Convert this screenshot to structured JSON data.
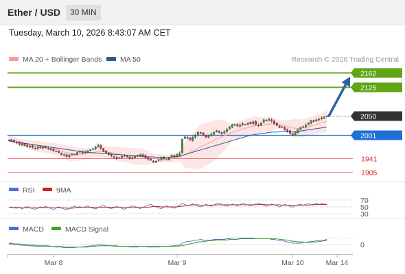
{
  "header": {
    "pair": "Ether / USD",
    "interval": "30 MIN"
  },
  "datetime": "Tuesday, March 10, 2026 8:43:07 AM CET",
  "colors": {
    "up": "#3a9a2e",
    "down": "#d4333a",
    "ma20_band": "#f4a0a0",
    "ma50": "#2c5a9a",
    "resistance": "#5fa516",
    "support": "#1f6fd6",
    "support_minor": "#f07c7c",
    "last": "#333333",
    "arrow": "#2e5f9f",
    "rsi": "#4f6fd0",
    "rsi_ma": "#cc2222",
    "macd": "#4f6fd0",
    "macd_signal": "#4aa02c"
  },
  "chart_data": [
    {
      "type": "candlestick",
      "legend": [
        "MA 20 + Bollinger Bands",
        "MA 50"
      ],
      "copyright": "Research © 2026 Trading Central",
      "x_ticks": [
        "Mar 8",
        "Mar 9",
        "Mar 10",
        "Mar 14"
      ],
      "ylim": [
        1880,
        2185
      ],
      "levels": [
        {
          "value": 2162,
          "label": "2162",
          "kind": "resistance"
        },
        {
          "value": 2125,
          "label": "2125",
          "kind": "resistance"
        },
        {
          "value": 2050,
          "label": "2050",
          "kind": "last"
        },
        {
          "value": 2001,
          "label": "2001",
          "kind": "support"
        },
        {
          "value": 1941,
          "label": "1941",
          "kind": "support_minor"
        },
        {
          "value": 1905,
          "label": "1905",
          "kind": "support_minor"
        }
      ],
      "close": [
        1988,
        1985,
        1983,
        1980,
        1976,
        1978,
        1973,
        1970,
        1972,
        1968,
        1966,
        1969,
        1967,
        1970,
        1968,
        1965,
        1962,
        1960,
        1958,
        1955,
        1950,
        1948,
        1945,
        1948,
        1952,
        1950,
        1955,
        1958,
        1954,
        1957,
        1960,
        1962,
        1965,
        1970,
        1975,
        1966,
        1958,
        1955,
        1950,
        1946,
        1943,
        1940,
        1942,
        1945,
        1948,
        1944,
        1940,
        1942,
        1945,
        1948,
        1950,
        1946,
        1942,
        1938,
        1935,
        1930,
        1933,
        1937,
        1941,
        1939,
        1936,
        1942,
        1948,
        1945,
        1950,
        1954,
        1990,
        1996,
        1992,
        1988,
        1995,
        2000,
        2008,
        2005,
        2000,
        1995,
        1998,
        2003,
        2008,
        2012,
        2007,
        2004,
        2010,
        2015,
        2022,
        2028,
        2026,
        2024,
        2027,
        2030,
        2028,
        2032,
        2030,
        2035,
        2028,
        2025,
        2032,
        2040,
        2038,
        2042,
        2036,
        2030,
        2025,
        2020,
        2022,
        2014,
        2010,
        2005,
        2000,
        2008,
        2015,
        2020,
        2022,
        2026,
        2032,
        2038,
        2035,
        2040,
        2042,
        2045,
        2048,
        2050
      ],
      "ma20": [
        1990,
        1989,
        1987,
        1985,
        1983,
        1981,
        1979,
        1977,
        1975,
        1973,
        1972,
        1971,
        1970,
        1969,
        1968,
        1967,
        1966,
        1965,
        1963,
        1961,
        1959,
        1957,
        1955,
        1953,
        1952,
        1951,
        1951,
        1951,
        1951,
        1952,
        1953,
        1954,
        1955,
        1956,
        1958,
        1958,
        1958,
        1957,
        1956,
        1955,
        1954,
        1952,
        1951,
        1950,
        1949,
        1948,
        1947,
        1946,
        1945,
        1945,
        1945,
        1944,
        1943,
        1942,
        1941,
        1940,
        1940,
        1940,
        1940,
        1940,
        1940,
        1940,
        1941,
        1942,
        1943,
        1944,
        1947,
        1950,
        1953,
        1956,
        1959,
        1962,
        1966,
        1970,
        1973,
        1976,
        1979,
        1982,
        1986,
        1990,
        1993,
        1996,
        1999,
        2001,
        2004,
        2007,
        2010,
        2012,
        2014,
        2016,
        2018,
        2020,
        2022,
        2023,
        2024,
        2025,
        2026,
        2027,
        2028,
        2029,
        2029,
        2029,
        2029,
        2028,
        2027,
        2025,
        2023,
        2021,
        2019,
        2018,
        2018,
        2018,
        2019,
        2020,
        2022,
        2024,
        2026,
        2028,
        2030,
        2032,
        2034,
        2036
      ],
      "ma50": [
        1985,
        1984,
        1983,
        1982,
        1981,
        1980,
        1979,
        1978,
        1977,
        1976,
        1975,
        1974,
        1973,
        1972,
        1971,
        1970,
        1969,
        1968,
        1967,
        1966,
        1965,
        1964,
        1963,
        1962,
        1961,
        1960,
        1959,
        1958,
        1957,
        1956,
        1956,
        1955,
        1955,
        1954,
        1954,
        1953,
        1953,
        1952,
        1952,
        1951,
        1951,
        1950,
        1950,
        1949,
        1949,
        1948,
        1948,
        1947,
        1947,
        1946,
        1946,
        1945,
        1945,
        1944,
        1944,
        1944,
        1943,
        1943,
        1943,
        1943,
        1943,
        1943,
        1944,
        1944,
        1945,
        1946,
        1948,
        1950,
        1952,
        1954,
        1956,
        1958,
        1960,
        1962,
        1964,
        1966,
        1968,
        1970,
        1972,
        1974,
        1976,
        1978,
        1980,
        1982,
        1984,
        1986,
        1988,
        1990,
        1992,
        1994,
        1996,
        1998,
        2000,
        2001,
        2002,
        2003,
        2004,
        2005,
        2006,
        2007,
        2008,
        2008,
        2008,
        2009,
        2009,
        2009,
        2009,
        2009,
        2008,
        2009,
        2010,
        2011,
        2012,
        2013,
        2014,
        2015,
        2016,
        2017,
        2018,
        2019,
        2020,
        2021
      ]
    },
    {
      "type": "line",
      "legend": [
        "RSI",
        "9MA"
      ],
      "ylim": [
        20,
        80
      ],
      "y_ticks": [
        70,
        50,
        30
      ],
      "guides": [
        70,
        50,
        30
      ],
      "rsi": [
        48,
        50,
        47,
        46,
        49,
        44,
        48,
        51,
        47,
        45,
        43,
        46,
        50,
        47,
        52,
        48,
        45,
        42,
        47,
        50,
        46,
        44,
        41,
        45,
        49,
        52,
        48,
        51,
        47,
        50,
        53,
        49,
        46,
        44,
        48,
        52,
        55,
        50,
        47,
        45,
        48,
        51,
        49,
        46,
        43,
        47,
        50,
        53,
        51,
        48,
        45,
        49,
        52,
        55,
        58,
        54,
        50,
        47,
        45,
        49,
        53,
        50,
        48,
        46,
        51,
        55,
        60,
        57,
        54,
        56,
        59,
        55,
        52,
        50,
        54,
        57,
        55,
        52,
        56,
        59,
        61,
        57,
        54,
        52,
        55,
        58,
        56,
        53,
        57,
        60,
        58,
        55,
        53,
        56,
        59,
        61,
        58,
        55,
        52,
        55,
        58,
        56,
        53,
        50,
        54,
        57,
        55,
        52,
        49,
        53,
        56,
        58,
        55,
        57,
        59,
        56,
        58,
        60,
        57,
        59,
        58,
        57
      ],
      "rsi_ma": [
        48,
        48,
        48,
        48,
        48,
        47,
        47,
        47,
        47,
        47,
        47,
        47,
        47,
        47,
        48,
        48,
        47,
        47,
        47,
        47,
        47,
        47,
        46,
        46,
        46,
        47,
        47,
        48,
        48,
        48,
        49,
        49,
        49,
        48,
        48,
        49,
        49,
        49,
        49,
        49,
        49,
        49,
        49,
        48,
        48,
        48,
        48,
        48,
        48,
        48,
        48,
        48,
        49,
        49,
        50,
        51,
        51,
        51,
        50,
        50,
        50,
        50,
        50,
        50,
        50,
        51,
        52,
        53,
        54,
        55,
        56,
        56,
        56,
        55,
        55,
        55,
        55,
        55,
        55,
        56,
        56,
        56,
        56,
        56,
        56,
        56,
        56,
        56,
        56,
        56,
        56,
        56,
        56,
        56,
        56,
        57,
        57,
        57,
        56,
        56,
        56,
        56,
        56,
        56,
        55,
        55,
        55,
        55,
        54,
        54,
        54,
        55,
        55,
        55,
        55,
        56,
        56,
        57,
        57,
        57,
        57,
        57
      ]
    },
    {
      "type": "line",
      "legend": [
        "MACD",
        "MACD Signal"
      ],
      "ylim": [
        -14,
        16
      ],
      "y_ticks": [
        0
      ],
      "macd": [
        1,
        1,
        0,
        0,
        -1,
        -1,
        -1,
        -2,
        -2,
        -2,
        -3,
        -3,
        -3,
        -3,
        -3,
        -3,
        -3,
        -3,
        -4,
        -4,
        -4,
        -5,
        -5,
        -5,
        -5,
        -5,
        -4,
        -4,
        -4,
        -3,
        -3,
        -2,
        -2,
        -1,
        0,
        0,
        -1,
        -1,
        -2,
        -2,
        -3,
        -3,
        -3,
        -3,
        -3,
        -3,
        -4,
        -4,
        -4,
        -4,
        -3,
        -3,
        -3,
        -4,
        -4,
        -4,
        -4,
        -4,
        -3,
        -3,
        -3,
        -3,
        -2,
        -2,
        -1,
        -1,
        2,
        4,
        5,
        5,
        6,
        7,
        7,
        8,
        7,
        7,
        7,
        7,
        8,
        8,
        8,
        8,
        8,
        9,
        9,
        10,
        10,
        10,
        10,
        10,
        10,
        10,
        10,
        10,
        9,
        9,
        9,
        9,
        9,
        9,
        8,
        8,
        7,
        6,
        6,
        5,
        4,
        3,
        2,
        2,
        2,
        2,
        3,
        3,
        4,
        5,
        5,
        6,
        6,
        7,
        7,
        8
      ],
      "signal": [
        2,
        2,
        1,
        1,
        1,
        0,
        0,
        0,
        -1,
        -1,
        -1,
        -2,
        -2,
        -2,
        -2,
        -2,
        -3,
        -3,
        -3,
        -3,
        -3,
        -4,
        -4,
        -4,
        -4,
        -4,
        -4,
        -4,
        -4,
        -4,
        -4,
        -3,
        -3,
        -3,
        -2,
        -2,
        -2,
        -2,
        -2,
        -2,
        -2,
        -2,
        -3,
        -3,
        -3,
        -3,
        -3,
        -3,
        -3,
        -3,
        -3,
        -3,
        -3,
        -3,
        -3,
        -3,
        -3,
        -3,
        -3,
        -3,
        -3,
        -3,
        -3,
        -3,
        -3,
        -2,
        -2,
        -1,
        0,
        1,
        2,
        3,
        4,
        4,
        5,
        5,
        6,
        6,
        6,
        7,
        7,
        7,
        7,
        7,
        8,
        8,
        8,
        8,
        9,
        9,
        9,
        9,
        9,
        9,
        9,
        9,
        9,
        9,
        9,
        9,
        9,
        9,
        9,
        8,
        8,
        7,
        7,
        6,
        5,
        5,
        4,
        4,
        4,
        3,
        3,
        4,
        4,
        4,
        5,
        5,
        6,
        6
      ]
    }
  ]
}
